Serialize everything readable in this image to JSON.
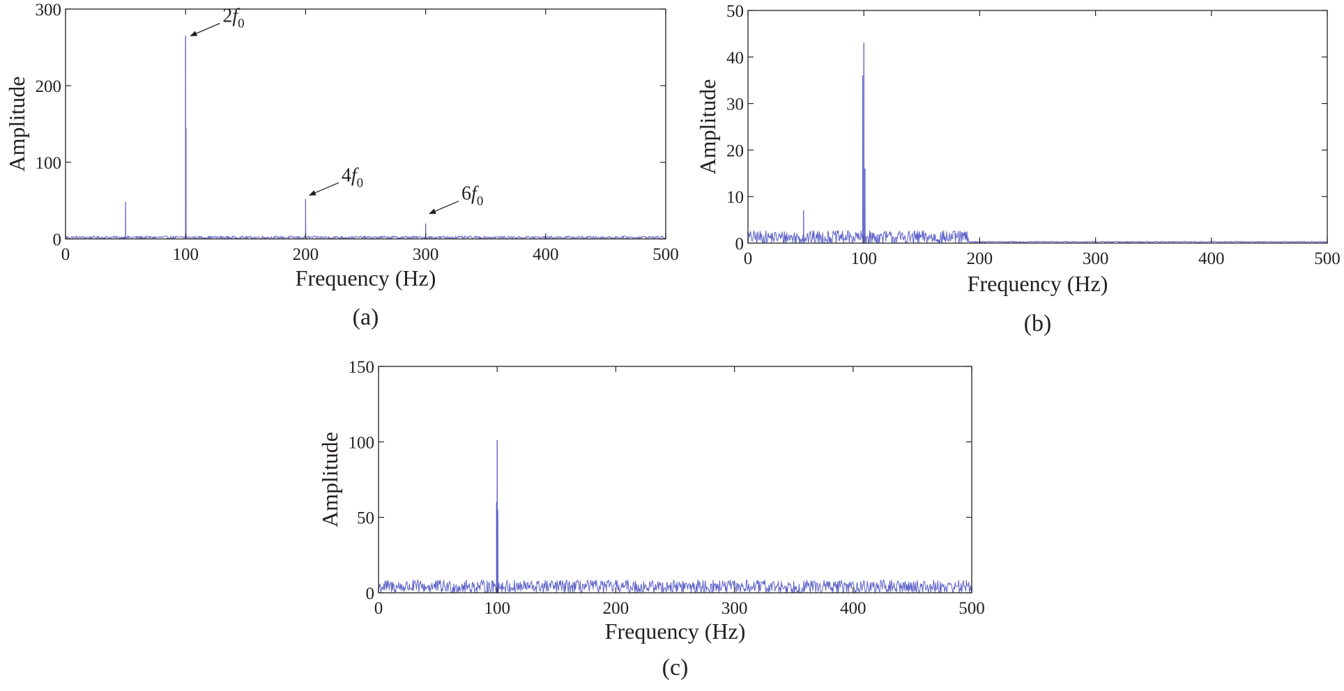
{
  "colors": {
    "series": "#5b5fc7",
    "axis": "#231f20",
    "background": "#ffffff"
  },
  "chart_data": [
    {
      "panel": "a",
      "type": "line",
      "caption": "(a)",
      "xlabel": "Frequency (Hz)",
      "ylabel": "Amplitude",
      "xlim": [
        0,
        500
      ],
      "ylim": [
        0,
        300
      ],
      "xticks": [
        0,
        100,
        200,
        300,
        400,
        500
      ],
      "yticks": [
        0,
        100,
        200,
        300
      ],
      "noise": {
        "from": 0,
        "to": 500,
        "base": 2,
        "amplitude": 1.8,
        "step": 0.5
      },
      "peaks": [
        {
          "x": 50,
          "y": 48
        },
        {
          "x": 100,
          "y": 265
        },
        {
          "x": 100.4,
          "y": 145
        },
        {
          "x": 200,
          "y": 52
        },
        {
          "x": 300,
          "y": 20
        }
      ],
      "annotations": [
        {
          "label_coef": "2",
          "label_var": "f",
          "label_sub": "0",
          "target": [
            103,
            265
          ]
        },
        {
          "label_coef": "4",
          "label_var": "f",
          "label_sub": "0",
          "target": [
            202,
            57
          ]
        },
        {
          "label_coef": "6",
          "label_var": "f",
          "label_sub": "0",
          "target": [
            302,
            33
          ]
        }
      ],
      "grid": false
    },
    {
      "panel": "b",
      "type": "line",
      "caption": "(b)",
      "xlabel": "Frequency (Hz)",
      "ylabel": "Amplitude",
      "xlim": [
        0,
        500
      ],
      "ylim": [
        0,
        50
      ],
      "xticks": [
        0,
        100,
        200,
        300,
        400,
        500
      ],
      "yticks": [
        0,
        10,
        20,
        30,
        40,
        50
      ],
      "noise": {
        "from": 0,
        "to": 190,
        "base": 1.2,
        "amplitude": 1.5,
        "step": 0.5
      },
      "peaks": [
        {
          "x": 48,
          "y": 7
        },
        {
          "x": 99,
          "y": 36
        },
        {
          "x": 100,
          "y": 43
        },
        {
          "x": 101,
          "y": 16
        }
      ],
      "annotations": [],
      "grid": false
    },
    {
      "panel": "c",
      "type": "line",
      "caption": "(c)",
      "xlabel": "Frequency (Hz)",
      "ylabel": "Amplitude",
      "xlim": [
        0,
        500
      ],
      "ylim": [
        0,
        150
      ],
      "xticks": [
        0,
        100,
        200,
        300,
        400,
        500
      ],
      "yticks": [
        0,
        50,
        100,
        150
      ],
      "noise": {
        "from": 0,
        "to": 500,
        "base": 4,
        "amplitude": 4.5,
        "step": 0.5
      },
      "peaks": [
        {
          "x": 99.5,
          "y": 60
        },
        {
          "x": 100,
          "y": 101
        },
        {
          "x": 100.5,
          "y": 55
        }
      ],
      "annotations": [],
      "grid": false
    }
  ]
}
